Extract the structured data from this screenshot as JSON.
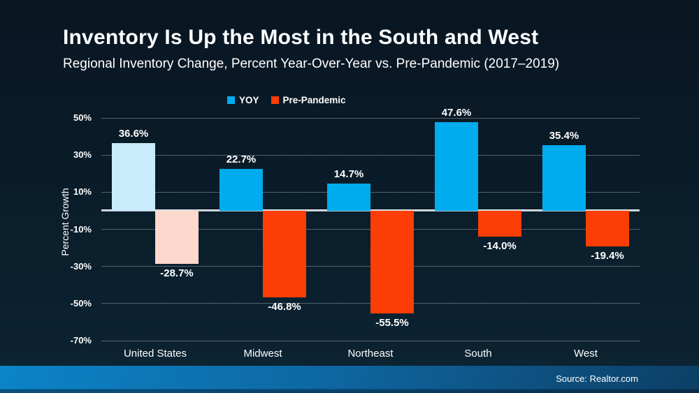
{
  "slide": {
    "title": "Inventory Is Up the Most in the South and West",
    "subtitle": "Regional Inventory Change, Percent Year-Over-Year vs. Pre-Pandemic (2017–2019)",
    "source": "Source: Realtor.com"
  },
  "chart_data": {
    "type": "bar",
    "title": "Inventory Is Up the Most in the South and West",
    "subtitle": "Regional Inventory Change, Percent Year-Over-Year vs. Pre-Pandemic (2017–2019)",
    "xlabel": "",
    "ylabel": "Percent Growth",
    "categories": [
      "United States",
      "Midwest",
      "Northeast",
      "South",
      "West"
    ],
    "series": [
      {
        "name": "YOY",
        "color": "#00ACEE",
        "values": [
          36.6,
          22.7,
          14.7,
          47.6,
          35.4
        ],
        "labels": [
          "36.6%",
          "22.7%",
          "14.7%",
          "47.6%",
          "35.4%"
        ],
        "bar_colors": [
          "#C9EBFB",
          "#00ACEE",
          "#00ACEE",
          "#00ACEE",
          "#00ACEE"
        ]
      },
      {
        "name": "Pre-Pandemic",
        "color": "#FC3D05",
        "values": [
          -28.7,
          -46.8,
          -55.5,
          -14.0,
          -19.4
        ],
        "labels": [
          "-28.7%",
          "-46.8%",
          "-55.5%",
          "-14.0%",
          "-19.4%"
        ],
        "bar_colors": [
          "#FDD8CC",
          "#FC3D05",
          "#FC3D05",
          "#FC3D05",
          "#FC3D05"
        ]
      }
    ],
    "yticks": [
      50,
      30,
      10,
      -10,
      -30,
      -50,
      -70
    ],
    "ytick_labels": [
      "50%",
      "30%",
      "10%",
      "-10%",
      "-30%",
      "-50%",
      "-70%"
    ],
    "ylim": [
      -70,
      50
    ],
    "grid": true,
    "legend_position": "top",
    "background": "#0A1C29",
    "zero_line_color": "#FFFFFF",
    "text_color": "#FFFFFF"
  }
}
